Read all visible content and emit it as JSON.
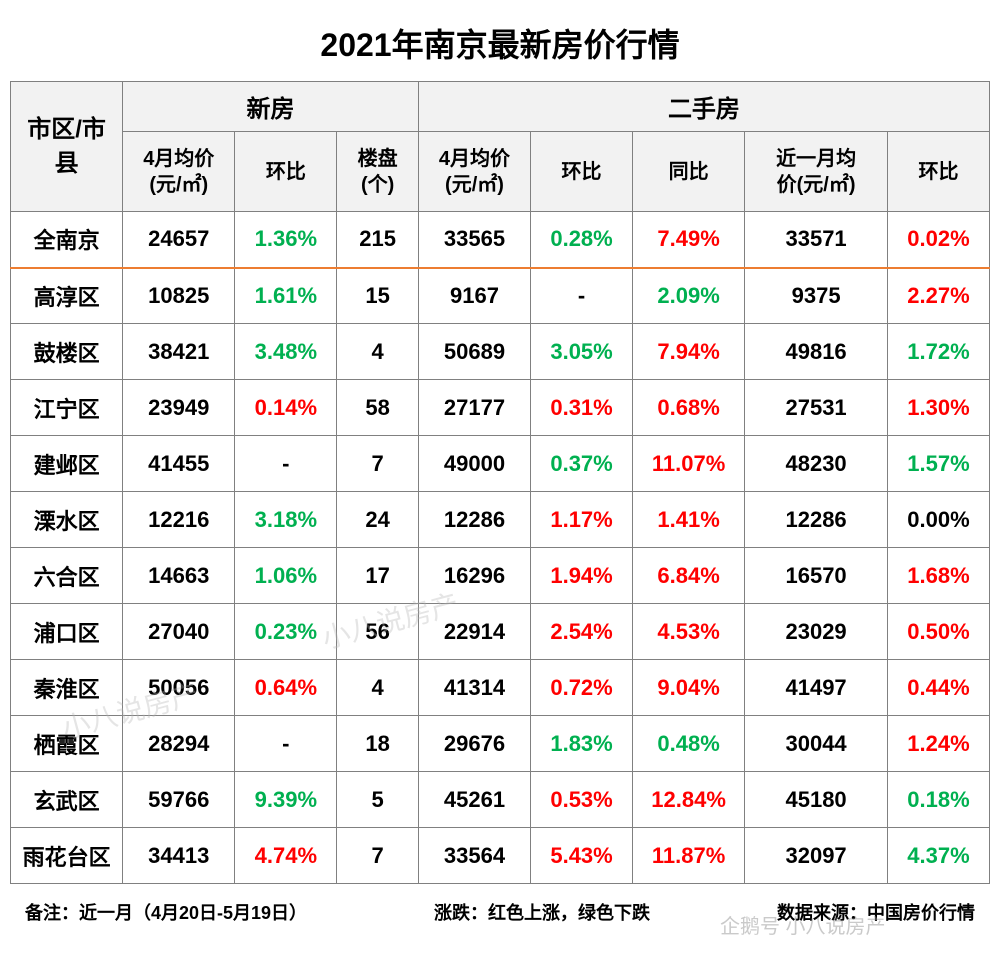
{
  "title": "2021年南京最新房价行情",
  "headers": {
    "district": "市区/市\n县",
    "group_new": "新房",
    "group_second": "二手房",
    "new_avg": "4月均价\n(元/㎡)",
    "new_mom": "环比",
    "new_count": "楼盘\n(个)",
    "sec_avg": "4月均价\n(元/㎡)",
    "sec_mom": "环比",
    "sec_yoy": "同比",
    "sec_recent": "近一月均\n价(元/㎡)",
    "sec_recent_mom": "环比"
  },
  "rows": [
    {
      "summary": true,
      "district": "全南京",
      "n_avg": "24657",
      "n_mom": "1.36%",
      "n_mom_dir": "down",
      "n_cnt": "215",
      "s_avg": "33565",
      "s_mom": "0.28%",
      "s_mom_dir": "down",
      "s_yoy": "7.49%",
      "s_yoy_dir": "up",
      "s_rec": "33571",
      "s_recm": "0.02%",
      "s_recm_dir": "up"
    },
    {
      "district": "高淳区",
      "n_avg": "10825",
      "n_mom": "1.61%",
      "n_mom_dir": "down",
      "n_cnt": "15",
      "s_avg": "9167",
      "s_mom": "-",
      "s_mom_dir": "neutral",
      "s_yoy": "2.09%",
      "s_yoy_dir": "down",
      "s_rec": "9375",
      "s_recm": "2.27%",
      "s_recm_dir": "up"
    },
    {
      "district": "鼓楼区",
      "n_avg": "38421",
      "n_mom": "3.48%",
      "n_mom_dir": "down",
      "n_cnt": "4",
      "s_avg": "50689",
      "s_mom": "3.05%",
      "s_mom_dir": "down",
      "s_yoy": "7.94%",
      "s_yoy_dir": "up",
      "s_rec": "49816",
      "s_recm": "1.72%",
      "s_recm_dir": "down"
    },
    {
      "district": "江宁区",
      "n_avg": "23949",
      "n_mom": "0.14%",
      "n_mom_dir": "up",
      "n_cnt": "58",
      "s_avg": "27177",
      "s_mom": "0.31%",
      "s_mom_dir": "up",
      "s_yoy": "0.68%",
      "s_yoy_dir": "up",
      "s_rec": "27531",
      "s_recm": "1.30%",
      "s_recm_dir": "up"
    },
    {
      "district": "建邺区",
      "n_avg": "41455",
      "n_mom": "-",
      "n_mom_dir": "neutral",
      "n_cnt": "7",
      "s_avg": "49000",
      "s_mom": "0.37%",
      "s_mom_dir": "down",
      "s_yoy": "11.07%",
      "s_yoy_dir": "up",
      "s_rec": "48230",
      "s_recm": "1.57%",
      "s_recm_dir": "down"
    },
    {
      "district": "溧水区",
      "n_avg": "12216",
      "n_mom": "3.18%",
      "n_mom_dir": "down",
      "n_cnt": "24",
      "s_avg": "12286",
      "s_mom": "1.17%",
      "s_mom_dir": "up",
      "s_yoy": "1.41%",
      "s_yoy_dir": "up",
      "s_rec": "12286",
      "s_recm": "0.00%",
      "s_recm_dir": "neutral"
    },
    {
      "district": "六合区",
      "n_avg": "14663",
      "n_mom": "1.06%",
      "n_mom_dir": "down",
      "n_cnt": "17",
      "s_avg": "16296",
      "s_mom": "1.94%",
      "s_mom_dir": "up",
      "s_yoy": "6.84%",
      "s_yoy_dir": "up",
      "s_rec": "16570",
      "s_recm": "1.68%",
      "s_recm_dir": "up"
    },
    {
      "district": "浦口区",
      "n_avg": "27040",
      "n_mom": "0.23%",
      "n_mom_dir": "down",
      "n_cnt": "56",
      "s_avg": "22914",
      "s_mom": "2.54%",
      "s_mom_dir": "up",
      "s_yoy": "4.53%",
      "s_yoy_dir": "up",
      "s_rec": "23029",
      "s_recm": "0.50%",
      "s_recm_dir": "up"
    },
    {
      "district": "秦淮区",
      "n_avg": "50056",
      "n_mom": "0.64%",
      "n_mom_dir": "up",
      "n_cnt": "4",
      "s_avg": "41314",
      "s_mom": "0.72%",
      "s_mom_dir": "up",
      "s_yoy": "9.04%",
      "s_yoy_dir": "up",
      "s_rec": "41497",
      "s_recm": "0.44%",
      "s_recm_dir": "up"
    },
    {
      "district": "栖霞区",
      "n_avg": "28294",
      "n_mom": "-",
      "n_mom_dir": "neutral",
      "n_cnt": "18",
      "s_avg": "29676",
      "s_mom": "1.83%",
      "s_mom_dir": "down",
      "s_yoy": "0.48%",
      "s_yoy_dir": "down",
      "s_rec": "30044",
      "s_recm": "1.24%",
      "s_recm_dir": "up"
    },
    {
      "district": "玄武区",
      "n_avg": "59766",
      "n_mom": "9.39%",
      "n_mom_dir": "down",
      "n_cnt": "5",
      "s_avg": "45261",
      "s_mom": "0.53%",
      "s_mom_dir": "up",
      "s_yoy": "12.84%",
      "s_yoy_dir": "up",
      "s_rec": "45180",
      "s_recm": "0.18%",
      "s_recm_dir": "down"
    },
    {
      "district": "雨花台区",
      "n_avg": "34413",
      "n_mom": "4.74%",
      "n_mom_dir": "up",
      "n_cnt": "7",
      "s_avg": "33564",
      "s_mom": "5.43%",
      "s_mom_dir": "up",
      "s_yoy": "11.87%",
      "s_yoy_dir": "up",
      "s_rec": "32097",
      "s_recm": "4.37%",
      "s_recm_dir": "down"
    }
  ],
  "footer": {
    "note": "备注：近一月（4月20日-5月19日）",
    "legend": "涨跌：红色上涨，绿色下跌",
    "source": "数据来源：中国房价行情"
  },
  "watermark": {
    "text1": "小八说房产",
    "text2": "企鹅号  小八说房产"
  },
  "colors": {
    "up": "#ff0000",
    "down": "#00b050",
    "neutral": "#000000",
    "header_bg": "#f2f2f2",
    "border": "#808080",
    "summary_border": "#ed7d31"
  }
}
